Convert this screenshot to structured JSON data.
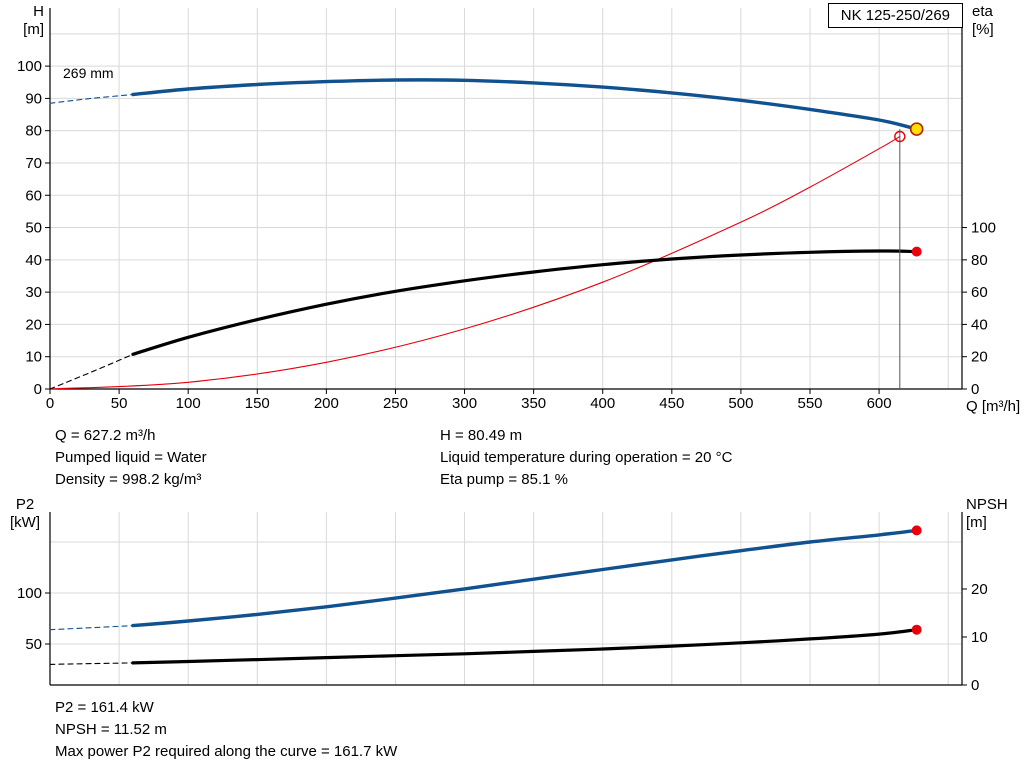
{
  "info_top": {
    "left": [
      "Q = 627.2 m³/h",
      "Pumped liquid = Water",
      "Density = 998.2 kg/m³"
    ],
    "right": [
      "H = 80.49 m",
      "Liquid temperature during operation = 20 °C",
      "Eta pump = 85.1 %"
    ]
  },
  "info_bottom": [
    "P2 = 161.4 kW",
    "NPSH = 11.52 m",
    "Max power P2 required along the curve = 161.7 kW"
  ],
  "chart_data": [
    {
      "type": "line",
      "title": "NK 125-250/269",
      "impeller_label": "269 mm",
      "x": {
        "label": "Q [m³/h]",
        "ticks": [
          0,
          50,
          100,
          150,
          200,
          250,
          300,
          350,
          400,
          450,
          500,
          550,
          600
        ],
        "max": 660,
        "grid_max": 650
      },
      "y_left": {
        "label": [
          "H",
          "[m]"
        ],
        "ticks": [
          0,
          10,
          20,
          30,
          40,
          50,
          60,
          70,
          80,
          90,
          100
        ],
        "max": 118,
        "grid_max": 110
      },
      "y_right": {
        "label": [
          "eta",
          "[%]"
        ],
        "ticks": [
          0,
          20,
          40,
          60,
          80,
          100
        ],
        "h_per_unit": 0.5
      },
      "series": [
        {
          "name": "system-curve",
          "axis": "H",
          "style": "solid",
          "width": 1.1,
          "color": "#e8000d",
          "points": [
            [
              0,
              0
            ],
            [
              100,
              2.07
            ],
            [
              200,
              8.27
            ],
            [
              300,
              18.61
            ],
            [
              400,
              33.08
            ],
            [
              500,
              51.69
            ],
            [
              550,
              62.54
            ],
            [
              600,
              74.43
            ],
            [
              615,
              78.2
            ]
          ]
        },
        {
          "name": "eta-curve-ext",
          "axis": "eta",
          "style": "dashed",
          "width": 1.1,
          "color": "#000000",
          "points": [
            [
              0,
              0
            ],
            [
              30,
              10.5
            ],
            [
              60,
              21.5
            ]
          ]
        },
        {
          "name": "eta-curve",
          "axis": "eta",
          "style": "solid",
          "width": 3.2,
          "color": "#000000",
          "points": [
            [
              60,
              21.5
            ],
            [
              100,
              32
            ],
            [
              150,
              43
            ],
            [
              200,
              52.5
            ],
            [
              250,
              60.5
            ],
            [
              300,
              67
            ],
            [
              350,
              72.5
            ],
            [
              400,
              77
            ],
            [
              450,
              80.5
            ],
            [
              500,
              83
            ],
            [
              550,
              84.7
            ],
            [
              600,
              85.5
            ],
            [
              627.2,
              85.1
            ]
          ]
        },
        {
          "name": "head-curve-ext",
          "axis": "H",
          "style": "dashed",
          "width": 1.1,
          "color": "#10518f",
          "points": [
            [
              0,
              88.5
            ],
            [
              30,
              90
            ],
            [
              60,
              91.2
            ]
          ]
        },
        {
          "name": "head-curve",
          "axis": "H",
          "style": "solid",
          "width": 3.4,
          "color": "#10518f",
          "points": [
            [
              60,
              91.2
            ],
            [
              100,
              92.9
            ],
            [
              150,
              94.3
            ],
            [
              200,
              95.2
            ],
            [
              250,
              95.7
            ],
            [
              300,
              95.6
            ],
            [
              350,
              94.8
            ],
            [
              400,
              93.5
            ],
            [
              450,
              91.7
            ],
            [
              500,
              89.4
            ],
            [
              550,
              86.6
            ],
            [
              600,
              83.3
            ],
            [
              627.2,
              80.49
            ]
          ]
        }
      ],
      "guide_line": {
        "q": 615,
        "axis": "H",
        "to_value": 80.49
      },
      "markers": [
        {
          "name": "requested-duty-point",
          "q": 615,
          "value": 78.2,
          "axis": "H",
          "shape": "open-circle",
          "color": "#e8000d"
        },
        {
          "name": "operating-point",
          "q": 627.2,
          "value": 80.49,
          "axis": "H",
          "shape": "dot",
          "r": 6,
          "fill": "#ffdf00",
          "stroke": "#b22000"
        },
        {
          "name": "eta-operating-point",
          "q": 627.2,
          "value": 85.1,
          "axis": "eta",
          "shape": "dot",
          "r": 5,
          "fill": "#e8000d"
        }
      ]
    },
    {
      "type": "line",
      "x": {
        "ticks": [],
        "max": 660,
        "grid_max": 650
      },
      "y_left": {
        "label": [
          "P2",
          "[kW]"
        ],
        "ticks": [
          50,
          100
        ],
        "grid": [
          50,
          100,
          150
        ]
      },
      "y_right": {
        "label": [
          "NPSH",
          "[m]"
        ],
        "ticks": [
          0,
          10,
          20
        ]
      },
      "series": [
        {
          "name": "p2-curve-ext",
          "axis": "P2",
          "style": "dashed",
          "width": 1.1,
          "color": "#10518f",
          "points": [
            [
              0,
              64
            ],
            [
              30,
              66
            ],
            [
              60,
              68
            ]
          ]
        },
        {
          "name": "p2-curve",
          "axis": "P2",
          "style": "solid",
          "width": 3.4,
          "color": "#10518f",
          "points": [
            [
              60,
              68
            ],
            [
              100,
              72.5
            ],
            [
              150,
              79
            ],
            [
              200,
              86.5
            ],
            [
              250,
              95
            ],
            [
              300,
              104
            ],
            [
              350,
              113.5
            ],
            [
              400,
              123
            ],
            [
              450,
              132.5
            ],
            [
              500,
              141.5
            ],
            [
              550,
              150
            ],
            [
              600,
              157
            ],
            [
              627.2,
              161.4
            ]
          ]
        },
        {
          "name": "npsh-curve-ext",
          "axis": "NPSH",
          "style": "dashed",
          "width": 1.1,
          "color": "#000000",
          "points": [
            [
              0,
              4.3
            ],
            [
              30,
              4.45
            ],
            [
              60,
              4.6
            ]
          ]
        },
        {
          "name": "npsh-curve",
          "axis": "NPSH",
          "style": "solid",
          "width": 3.2,
          "color": "#000000",
          "points": [
            [
              60,
              4.6
            ],
            [
              100,
              4.9
            ],
            [
              150,
              5.3
            ],
            [
              200,
              5.7
            ],
            [
              250,
              6.1
            ],
            [
              300,
              6.5
            ],
            [
              350,
              7.0
            ],
            [
              400,
              7.5
            ],
            [
              450,
              8.1
            ],
            [
              500,
              8.8
            ],
            [
              550,
              9.6
            ],
            [
              600,
              10.6
            ],
            [
              627.2,
              11.52
            ]
          ]
        }
      ],
      "markers": [
        {
          "name": "p2-operating-point",
          "q": 627.2,
          "value": 161.4,
          "axis": "P2",
          "shape": "dot",
          "r": 5,
          "fill": "#e8000d"
        },
        {
          "name": "npsh-operating-point",
          "q": 627.2,
          "value": 11.52,
          "axis": "NPSH",
          "shape": "dot",
          "r": 5,
          "fill": "#e8000d"
        }
      ]
    }
  ]
}
